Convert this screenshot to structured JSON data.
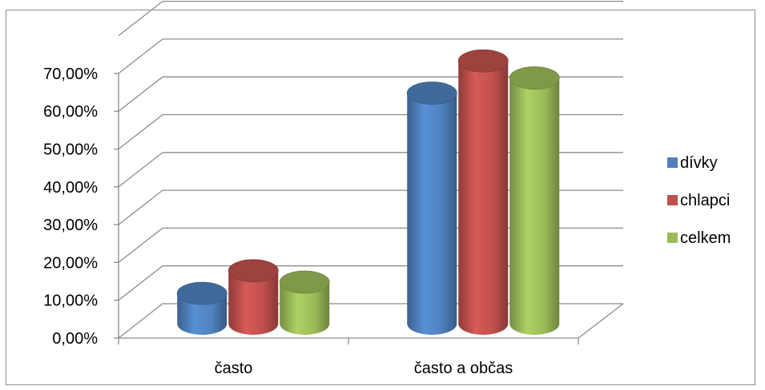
{
  "chart_data": {
    "type": "bar",
    "style": "3d-cylinder",
    "categories": [
      "často",
      "často a občas"
    ],
    "series": [
      {
        "name": "dívky",
        "values": [
          8.0,
          61.0
        ],
        "color": "#4f81bd"
      },
      {
        "name": "chlapci",
        "values": [
          14.0,
          69.5
        ],
        "color": "#c0504d"
      },
      {
        "name": "celkem",
        "values": [
          11.0,
          65.0
        ],
        "color": "#9bbb59"
      }
    ],
    "yticks": [
      "0,00%",
      "10,00%",
      "20,00%",
      "30,00%",
      "40,00%",
      "50,00%",
      "60,00%",
      "70,00%"
    ],
    "ylim": [
      0,
      70
    ],
    "grid": true,
    "legend": "right"
  }
}
